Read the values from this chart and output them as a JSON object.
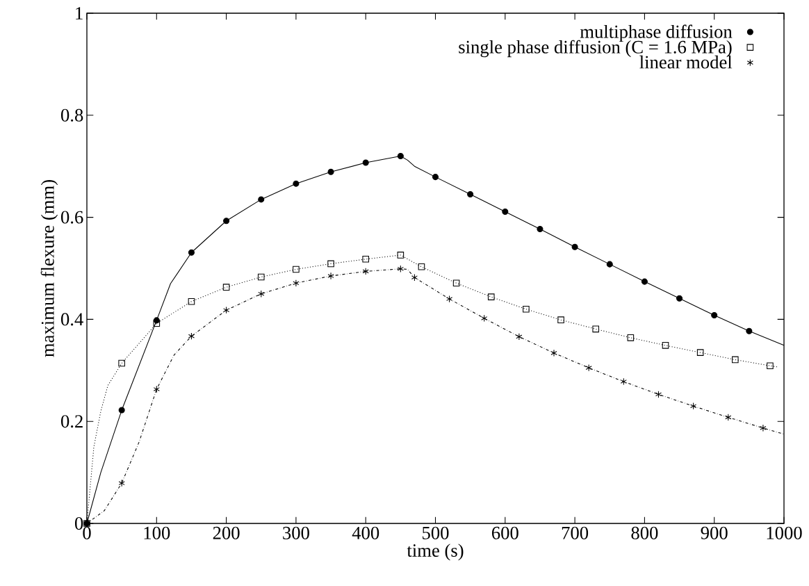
{
  "chart_data": {
    "type": "line",
    "xlabel": "time (s)",
    "ylabel": "maximum flexure (mm)",
    "xlim": [
      0,
      1000
    ],
    "ylim": [
      0,
      1
    ],
    "xticks": [
      0,
      100,
      200,
      300,
      400,
      500,
      600,
      700,
      800,
      900,
      1000
    ],
    "yticks": [
      0,
      0.2,
      0.4,
      0.6,
      0.8,
      1
    ],
    "legend": "top right",
    "series": [
      {
        "color": "#000000",
        "line_style": "solid",
        "x": [
          0,
          20,
          50,
          100,
          120,
          150,
          200,
          250,
          300,
          350,
          400,
          450,
          460,
          470,
          500,
          550,
          600,
          650,
          700,
          750,
          800,
          850,
          900,
          950,
          1000
        ],
        "values": [
          0,
          0.1,
          0.222,
          0.398,
          0.47,
          0.531,
          0.593,
          0.635,
          0.666,
          0.689,
          0.707,
          0.72,
          0.712,
          0.7,
          0.679,
          0.645,
          0.611,
          0.577,
          0.542,
          0.508,
          0.474,
          0.441,
          0.408,
          0.377,
          0.349
        ]
      },
      {
        "color": "#000000",
        "line_style": "dotted",
        "x": [
          0,
          10,
          20,
          30,
          50,
          100,
          150,
          200,
          250,
          300,
          350,
          400,
          450,
          480,
          530,
          580,
          630,
          680,
          730,
          780,
          830,
          880,
          930,
          980,
          990
        ],
        "values": [
          0,
          0.15,
          0.22,
          0.27,
          0.314,
          0.392,
          0.435,
          0.463,
          0.483,
          0.498,
          0.509,
          0.518,
          0.526,
          0.503,
          0.471,
          0.444,
          0.42,
          0.399,
          0.381,
          0.364,
          0.349,
          0.335,
          0.321,
          0.309,
          0.307
        ]
      },
      {
        "color": "#000000",
        "line_style": "dashdot",
        "x": [
          0,
          25,
          50,
          75,
          100,
          125,
          150,
          200,
          250,
          300,
          350,
          400,
          450,
          460,
          470,
          520,
          570,
          620,
          670,
          720,
          770,
          820,
          870,
          920,
          970,
          1000
        ],
        "values": [
          0,
          0.025,
          0.079,
          0.16,
          0.263,
          0.33,
          0.367,
          0.418,
          0.45,
          0.471,
          0.485,
          0.494,
          0.499,
          0.498,
          0.482,
          0.44,
          0.402,
          0.366,
          0.334,
          0.305,
          0.278,
          0.253,
          0.23,
          0.208,
          0.187,
          0.175
        ]
      },
      {
        "type": "scatter",
        "name": "multiphase diffusion",
        "color": "#000000",
        "marker": "circle",
        "x": [
          0,
          50,
          100,
          150,
          200,
          250,
          300,
          350,
          400,
          450,
          500,
          550,
          600,
          650,
          700,
          750,
          800,
          850,
          900,
          950
        ],
        "values": [
          0,
          0.222,
          0.398,
          0.531,
          0.593,
          0.635,
          0.666,
          0.689,
          0.707,
          0.72,
          0.679,
          0.645,
          0.611,
          0.577,
          0.542,
          0.508,
          0.474,
          0.441,
          0.408,
          0.377
        ]
      },
      {
        "type": "scatter",
        "name": "single phase diffusion (C = 1.6 MPa)",
        "color": "#000000",
        "marker": "square",
        "x": [
          0,
          50,
          100,
          150,
          200,
          250,
          300,
          350,
          400,
          450,
          480,
          530,
          580,
          630,
          680,
          730,
          780,
          830,
          880,
          930,
          980
        ],
        "values": [
          0,
          0.314,
          0.392,
          0.435,
          0.463,
          0.483,
          0.498,
          0.509,
          0.518,
          0.526,
          0.503,
          0.471,
          0.444,
          0.42,
          0.399,
          0.381,
          0.364,
          0.349,
          0.335,
          0.321,
          0.309
        ]
      },
      {
        "type": "scatter",
        "name": "linear model",
        "color": "#000000",
        "marker": "cross",
        "x": [
          0,
          50,
          100,
          150,
          200,
          250,
          300,
          350,
          400,
          450,
          470,
          520,
          570,
          620,
          670,
          720,
          770,
          820,
          870,
          920,
          970
        ],
        "values": [
          0,
          0.079,
          0.263,
          0.367,
          0.418,
          0.45,
          0.471,
          0.485,
          0.494,
          0.499,
          0.482,
          0.44,
          0.402,
          0.366,
          0.334,
          0.305,
          0.278,
          0.253,
          0.23,
          0.208,
          0.187
        ]
      }
    ]
  }
}
